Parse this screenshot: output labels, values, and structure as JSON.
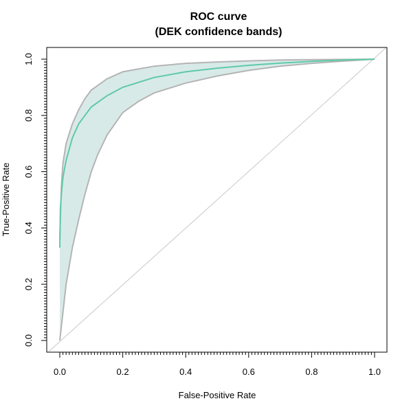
{
  "chart_data": {
    "type": "line",
    "title": "ROC curve",
    "subtitle": "(DEK confidence bands)",
    "xlabel": "False-Positive Rate",
    "ylabel": "True-Positive Rate",
    "xlim": [
      0.0,
      1.0
    ],
    "ylim": [
      0.0,
      1.0
    ],
    "xticks": [
      "0.0",
      "0.2",
      "0.4",
      "0.6",
      "0.8",
      "1.0"
    ],
    "yticks": [
      "0.0",
      "0.2",
      "0.4",
      "0.6",
      "0.8",
      "1.0"
    ],
    "grid": false,
    "legend": "none",
    "series": [
      {
        "role": "roc-curve",
        "color": "#5ec9a8",
        "x": [
          0.0,
          0.002,
          0.005,
          0.01,
          0.02,
          0.04,
          0.06,
          0.08,
          0.1,
          0.15,
          0.2,
          0.3,
          0.4,
          0.5,
          0.6,
          0.7,
          0.8,
          0.9,
          1.0
        ],
        "y": [
          0.33,
          0.47,
          0.52,
          0.58,
          0.64,
          0.72,
          0.77,
          0.8,
          0.83,
          0.87,
          0.9,
          0.935,
          0.955,
          0.968,
          0.978,
          0.986,
          0.992,
          0.997,
          1.0
        ]
      },
      {
        "role": "upper-band",
        "color": "#b4b4b4",
        "x": [
          0.0,
          0.005,
          0.01,
          0.02,
          0.04,
          0.06,
          0.08,
          0.1,
          0.15,
          0.2,
          0.3,
          0.4,
          0.5,
          0.6,
          0.7,
          0.8,
          0.9,
          1.0
        ],
        "y": [
          0.36,
          0.55,
          0.63,
          0.7,
          0.77,
          0.82,
          0.86,
          0.89,
          0.93,
          0.955,
          0.975,
          0.985,
          0.99,
          0.994,
          0.997,
          0.998,
          0.999,
          1.0
        ]
      },
      {
        "role": "lower-band",
        "color": "#b4b4b4",
        "x": [
          0.0,
          0.02,
          0.04,
          0.06,
          0.08,
          0.1,
          0.12,
          0.15,
          0.2,
          0.25,
          0.3,
          0.4,
          0.5,
          0.6,
          0.7,
          0.8,
          0.9,
          1.0
        ],
        "y": [
          0.0,
          0.2,
          0.33,
          0.43,
          0.52,
          0.6,
          0.66,
          0.73,
          0.81,
          0.85,
          0.88,
          0.915,
          0.94,
          0.96,
          0.975,
          0.985,
          0.993,
          1.0
        ]
      },
      {
        "role": "diagonal",
        "color": "#c8c8c8",
        "x": [
          0.0,
          1.0
        ],
        "y": [
          0.0,
          1.0
        ]
      }
    ],
    "band_fill": "#d8eae8"
  }
}
